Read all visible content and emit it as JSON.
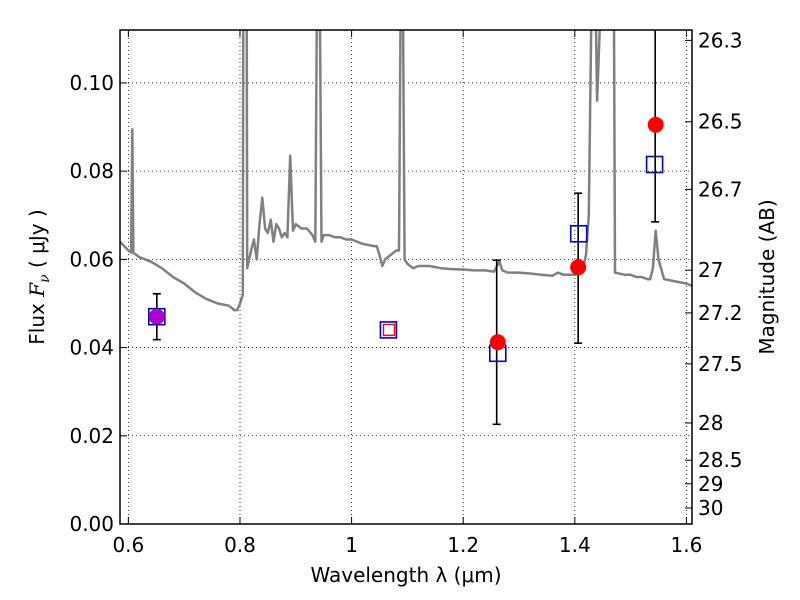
{
  "chart_data": {
    "type": "scatter",
    "xlabel": "Wavelength  λ (μm)",
    "ylabel_prefix": "Flux  ",
    "ylabel_math": "F",
    "ylabel_sub": "ν",
    "ylabel_suffix": "  ( μJy )",
    "y2label": "Magnitude (AB)",
    "xlim": [
      0.585,
      1.61
    ],
    "ylim": [
      0.0,
      0.112
    ],
    "grid": true,
    "x_ticks": [
      {
        "v": 0.6,
        "label": "0.6"
      },
      {
        "v": 0.8,
        "label": "0.8"
      },
      {
        "v": 1.0,
        "label": "1"
      },
      {
        "v": 1.2,
        "label": "1.2"
      },
      {
        "v": 1.4,
        "label": "1.4"
      },
      {
        "v": 1.6,
        "label": "1.6"
      }
    ],
    "y_ticks": [
      {
        "v": 0.0,
        "label": "0.00"
      },
      {
        "v": 0.02,
        "label": "0.02"
      },
      {
        "v": 0.04,
        "label": "0.04"
      },
      {
        "v": 0.06,
        "label": "0.06"
      },
      {
        "v": 0.08,
        "label": "0.08"
      },
      {
        "v": 0.1,
        "label": "0.10"
      }
    ],
    "mag_ticks": [
      {
        "mag": 26.3,
        "label": "26.3"
      },
      {
        "mag": 26.5,
        "label": "26.5"
      },
      {
        "mag": 26.7,
        "label": "26.7"
      },
      {
        "mag": 27.0,
        "label": "27"
      },
      {
        "mag": 27.2,
        "label": "27.2"
      },
      {
        "mag": 27.5,
        "label": "27.5"
      },
      {
        "mag": 28.0,
        "label": "28"
      },
      {
        "mag": 28.5,
        "label": "28.5"
      },
      {
        "mag": 29.0,
        "label": "29"
      },
      {
        "mag": 30.0,
        "label": "30"
      }
    ],
    "series": [
      {
        "kind": "line",
        "color": "#808080",
        "points": [
          [
            0.585,
            0.064
          ],
          [
            0.6,
            0.062
          ],
          [
            0.605,
            0.0615
          ],
          [
            0.607,
            0.0895
          ],
          [
            0.609,
            0.0615
          ],
          [
            0.62,
            0.0605
          ],
          [
            0.64,
            0.0595
          ],
          [
            0.66,
            0.058
          ],
          [
            0.68,
            0.056
          ],
          [
            0.7,
            0.0545
          ],
          [
            0.72,
            0.0525
          ],
          [
            0.74,
            0.051
          ],
          [
            0.76,
            0.05
          ],
          [
            0.78,
            0.0495
          ],
          [
            0.79,
            0.0485
          ],
          [
            0.795,
            0.0485
          ],
          [
            0.8,
            0.05
          ],
          [
            0.805,
            0.052
          ],
          [
            0.806,
            0.12
          ],
          [
            0.812,
            0.12
          ],
          [
            0.813,
            0.058
          ],
          [
            0.82,
            0.062
          ],
          [
            0.825,
            0.0645
          ],
          [
            0.83,
            0.06
          ],
          [
            0.835,
            0.068
          ],
          [
            0.84,
            0.074
          ],
          [
            0.845,
            0.067
          ],
          [
            0.85,
            0.066
          ],
          [
            0.855,
            0.069
          ],
          [
            0.86,
            0.064
          ],
          [
            0.865,
            0.068
          ],
          [
            0.87,
            0.067
          ],
          [
            0.875,
            0.065
          ],
          [
            0.88,
            0.066
          ],
          [
            0.885,
            0.065
          ],
          [
            0.89,
            0.0835
          ],
          [
            0.895,
            0.0665
          ],
          [
            0.9,
            0.068
          ],
          [
            0.91,
            0.067
          ],
          [
            0.92,
            0.067
          ],
          [
            0.93,
            0.0655
          ],
          [
            0.935,
            0.064
          ],
          [
            0.938,
            0.12
          ],
          [
            0.943,
            0.12
          ],
          [
            0.946,
            0.064
          ],
          [
            0.95,
            0.0655
          ],
          [
            0.96,
            0.0655
          ],
          [
            0.97,
            0.065
          ],
          [
            0.98,
            0.065
          ],
          [
            0.99,
            0.0645
          ],
          [
            1.0,
            0.0645
          ],
          [
            1.02,
            0.0635
          ],
          [
            1.04,
            0.063
          ],
          [
            1.045,
            0.063
          ],
          [
            1.05,
            0.061
          ],
          [
            1.055,
            0.0585
          ],
          [
            1.06,
            0.06
          ],
          [
            1.07,
            0.061
          ],
          [
            1.08,
            0.062
          ],
          [
            1.085,
            0.062
          ],
          [
            1.088,
            0.12
          ],
          [
            1.092,
            0.12
          ],
          [
            1.095,
            0.06
          ],
          [
            1.1,
            0.059
          ],
          [
            1.11,
            0.058
          ],
          [
            1.12,
            0.0585
          ],
          [
            1.14,
            0.0585
          ],
          [
            1.16,
            0.058
          ],
          [
            1.18,
            0.0578
          ],
          [
            1.2,
            0.0577
          ],
          [
            1.22,
            0.0575
          ],
          [
            1.24,
            0.0575
          ],
          [
            1.255,
            0.0572
          ],
          [
            1.265,
            0.0595
          ],
          [
            1.27,
            0.0575
          ],
          [
            1.28,
            0.057
          ],
          [
            1.3,
            0.057
          ],
          [
            1.32,
            0.0568
          ],
          [
            1.34,
            0.0565
          ],
          [
            1.36,
            0.0563
          ],
          [
            1.37,
            0.057
          ],
          [
            1.38,
            0.0565
          ],
          [
            1.4,
            0.0565
          ],
          [
            1.41,
            0.057
          ],
          [
            1.415,
            0.058
          ],
          [
            1.42,
            0.061
          ],
          [
            1.425,
            0.07
          ],
          [
            1.43,
            0.12
          ],
          [
            1.437,
            0.12
          ],
          [
            1.44,
            0.096
          ],
          [
            1.447,
            0.12
          ],
          [
            1.465,
            0.12
          ],
          [
            1.47,
            0.12
          ],
          [
            1.472,
            0.057
          ],
          [
            1.49,
            0.0565
          ],
          [
            1.5,
            0.0565
          ],
          [
            1.51,
            0.056
          ],
          [
            1.52,
            0.056
          ],
          [
            1.53,
            0.0555
          ],
          [
            1.535,
            0.0555
          ],
          [
            1.54,
            0.058
          ],
          [
            1.545,
            0.0665
          ],
          [
            1.55,
            0.06
          ],
          [
            1.56,
            0.0555
          ],
          [
            1.58,
            0.055
          ],
          [
            1.6,
            0.0545
          ],
          [
            1.61,
            0.054
          ]
        ]
      },
      {
        "kind": "errorbars",
        "color": "#000000",
        "points": [
          {
            "x": 0.651,
            "y": 0.047,
            "lo": 0.0418,
            "hi": 0.0522
          },
          {
            "x": 1.26,
            "y": 0.0412,
            "lo": 0.0226,
            "hi": 0.0598
          },
          {
            "x": 1.406,
            "y": 0.058,
            "lo": 0.041,
            "hi": 0.075
          },
          {
            "x": 1.544,
            "y": 0.09,
            "lo": 0.0685,
            "hi": 0.12
          }
        ]
      },
      {
        "kind": "open-squares",
        "color": "#0000cc",
        "points": [
          [
            0.651,
            0.047
          ],
          [
            1.066,
            0.044
          ],
          [
            1.262,
            0.0387
          ],
          [
            1.407,
            0.0658
          ],
          [
            1.543,
            0.0815
          ]
        ]
      },
      {
        "kind": "small-open-square",
        "color": "#ff0000",
        "points": [
          [
            1.067,
            0.044
          ]
        ]
      },
      {
        "kind": "filled-circles",
        "color": "#ff0000",
        "points": [
          [
            1.262,
            0.0412
          ],
          [
            1.406,
            0.0582
          ],
          [
            1.545,
            0.0905
          ]
        ]
      },
      {
        "kind": "filled-circles",
        "color": "#aa00cc",
        "points": [
          [
            0.651,
            0.047
          ]
        ]
      }
    ]
  }
}
